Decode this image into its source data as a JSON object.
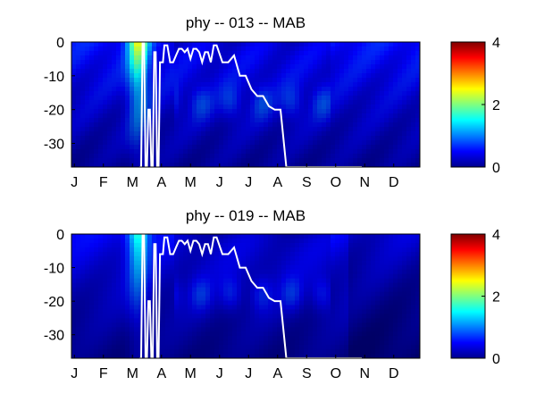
{
  "chart_data": [
    {
      "type": "heatmap",
      "title": "phy -- 013 -- MAB",
      "x_ticks": [
        "J",
        "F",
        "M",
        "A",
        "M",
        "J",
        "J",
        "A",
        "S",
        "O",
        "N",
        "D"
      ],
      "y_ticks": [
        "0",
        "-10",
        "-20",
        "-30"
      ],
      "ylim": [
        -37,
        0
      ],
      "colorbar_ticks": [
        "0",
        "2",
        "4"
      ],
      "clim": [
        0,
        4
      ],
      "colormap": "jet",
      "line_color": "#ffffff",
      "line": {
        "name": "",
        "x_month": [
          2.35,
          2.4,
          2.45,
          2.5,
          2.55,
          2.6,
          2.65,
          2.7,
          2.75,
          2.8,
          2.85,
          2.9,
          2.95,
          3.0,
          3.05,
          3.1,
          3.15,
          3.2,
          3.3,
          3.4,
          3.5,
          3.6,
          3.7,
          3.8,
          3.9,
          4.0,
          4.1,
          4.2,
          4.3,
          4.4,
          4.5,
          4.6,
          4.7,
          4.8,
          4.9,
          5.0,
          5.2,
          5.4,
          5.6,
          5.8,
          6.0,
          6.2,
          6.4,
          6.6,
          6.8,
          7.0,
          7.2,
          7.4,
          7.6,
          7.8,
          8.0,
          8.2,
          8.4,
          8.6,
          8.8,
          9.0,
          9.2,
          9.4,
          9.6,
          9.8,
          10.0
        ],
        "depth": [
          -37,
          -37,
          0,
          0,
          -37,
          -37,
          -20,
          -20,
          -37,
          -37,
          -3,
          -3,
          -37,
          -37,
          -6,
          -6,
          -6,
          -1,
          -1,
          -6,
          -6,
          -4,
          -2,
          -2,
          -3,
          -2,
          -5,
          -2,
          -2,
          -3,
          -6,
          -3,
          -3,
          -6,
          -1,
          -1,
          -6,
          -6,
          -4,
          -10,
          -10,
          -14,
          -16,
          -16,
          -19,
          -20,
          -20,
          -37,
          -37,
          -37,
          -37,
          -37,
          -37,
          -37,
          -37,
          -37,
          -37,
          -37,
          -37,
          -37,
          -37
        ]
      }
    },
    {
      "type": "heatmap",
      "title": "phy -- 019 -- MAB",
      "x_ticks": [
        "J",
        "F",
        "M",
        "A",
        "M",
        "J",
        "J",
        "A",
        "S",
        "O",
        "N",
        "D"
      ],
      "y_ticks": [
        "0",
        "-10",
        "-20",
        "-30"
      ],
      "ylim": [
        -37,
        0
      ],
      "colorbar_ticks": [
        "0",
        "2",
        "4"
      ],
      "clim": [
        0,
        4
      ],
      "colormap": "jet",
      "line_color": "#ffffff"
    }
  ]
}
